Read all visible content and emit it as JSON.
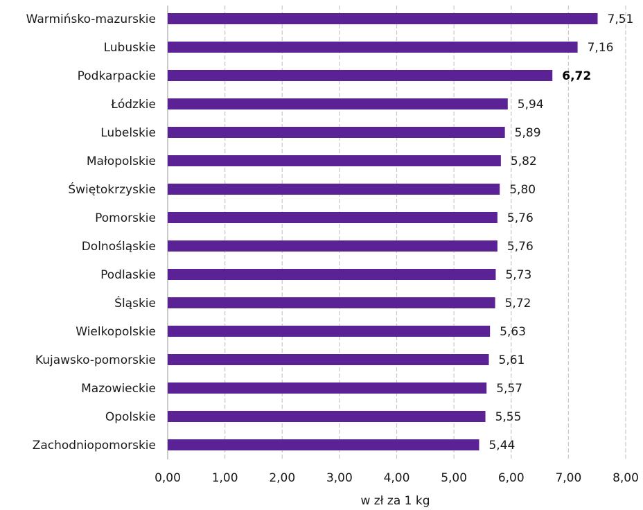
{
  "chart_data": {
    "type": "bar",
    "orientation": "horizontal",
    "categories": [
      "Warmińsko-mazurskie",
      "Lubuskie",
      "Podkarpackie",
      "Łódzkie",
      "Lubelskie",
      "Małopolskie",
      "Świętokrzyskie",
      "Pomorskie",
      "Dolnośląskie",
      "Podlaskie",
      "Śląskie",
      "Wielkopolskie",
      "Kujawsko-pomorskie",
      "Mazowieckie",
      "Opolskie",
      "Zachodniopomorskie"
    ],
    "values": [
      7.51,
      7.16,
      6.72,
      5.94,
      5.89,
      5.82,
      5.8,
      5.76,
      5.76,
      5.73,
      5.72,
      5.63,
      5.61,
      5.57,
      5.55,
      5.44
    ],
    "value_labels": [
      "7,51",
      "7,16",
      "6,72",
      "5,94",
      "5,89",
      "5,82",
      "5,80",
      "5,76",
      "5,76",
      "5,73",
      "5,72",
      "5,63",
      "5,61",
      "5,57",
      "5,55",
      "5,44"
    ],
    "highlight_category": "Podkarpackie",
    "xlabel": "w zł za 1 kg",
    "xlim": [
      0,
      8
    ],
    "xticks": [
      0,
      1,
      2,
      3,
      4,
      5,
      6,
      7,
      8
    ],
    "xtick_labels": [
      "0,00",
      "1,00",
      "2,00",
      "3,00",
      "4,00",
      "5,00",
      "6,00",
      "7,00",
      "8,00"
    ],
    "grid": "vertical, dashed",
    "legend": "none",
    "bar_color": "#5b2296"
  }
}
